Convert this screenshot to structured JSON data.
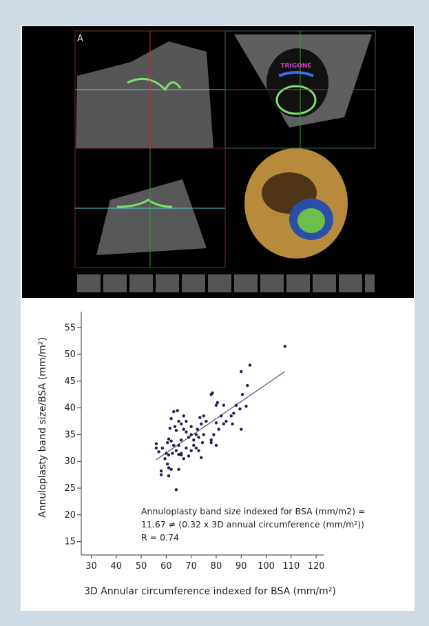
{
  "image": {
    "panel_label": "A",
    "annotation": "TRIGONE"
  },
  "chart_data": {
    "type": "scatter",
    "xlabel": "3D Annular circumference indexed for BSA (mm/m²)",
    "ylabel": "Annuloplasty band size/BSA (mm/m²)",
    "annotations": [
      "Annuloplasty band size indexed for BSA (mm/m2) =",
      "11.67 ≠ (0.32 x 3D annual circumference (mm/m²))",
      "R = 0.74"
    ],
    "color": "#1e1e58",
    "x": [
      107.5,
      93.5,
      90,
      92.5,
      88,
      90.5,
      92,
      89.5,
      90,
      86.5,
      86,
      87,
      84,
      83,
      80,
      80.5,
      78.5,
      78,
      82,
      81,
      80,
      79,
      78,
      80,
      78,
      83,
      76,
      75,
      73.5,
      74,
      72.5,
      75,
      73,
      74.5,
      73,
      72,
      71,
      70,
      70,
      69,
      68,
      67,
      66,
      67,
      68,
      66,
      65,
      64,
      63.5,
      63,
      64.5,
      65,
      62,
      61.5,
      61,
      60.5,
      62,
      63,
      64,
      65,
      66,
      69,
      70,
      71,
      72,
      74,
      67,
      68,
      62.5,
      61,
      60,
      59.5,
      60.5,
      61,
      62,
      61,
      58,
      58,
      57,
      56,
      56,
      58.5,
      65,
      66,
      64
    ],
    "values": [
      51.5,
      48,
      46.8,
      44.2,
      40.5,
      42.5,
      40.3,
      39.8,
      36,
      37,
      38.5,
      39,
      37.5,
      40.5,
      40.5,
      41,
      42.8,
      42.5,
      38.5,
      36,
      37.2,
      35,
      34,
      33,
      33.5,
      37,
      37.5,
      38.5,
      38.2,
      37,
      36,
      35,
      34.5,
      33.5,
      32,
      35,
      34,
      35,
      36.5,
      34.5,
      37.5,
      38.5,
      37,
      36,
      35.5,
      34,
      33,
      35.8,
      36.5,
      39.3,
      39.5,
      37.5,
      38,
      36.2,
      34.2,
      33.5,
      33.8,
      33,
      32,
      31.3,
      31.5,
      31,
      32,
      33,
      32.5,
      30.7,
      30.5,
      32.5,
      31.5,
      31.2,
      31.5,
      30.5,
      29.5,
      28.8,
      28.5,
      27.3,
      28.2,
      27.5,
      31.8,
      32.5,
      33.3,
      32.5,
      28.5,
      31.2,
      24.7
    ],
    "fit_line": {
      "x": [
        56,
        107.5
      ],
      "y": [
        30.3,
        46.8
      ]
    },
    "xlim": [
      26,
      123
    ],
    "ylim": [
      12.5,
      58
    ],
    "xticks": [
      30,
      40,
      50,
      60,
      70,
      80,
      90,
      100,
      110,
      120
    ],
    "yticks": [
      15,
      20,
      25,
      30,
      35,
      40,
      45,
      50,
      55
    ]
  }
}
